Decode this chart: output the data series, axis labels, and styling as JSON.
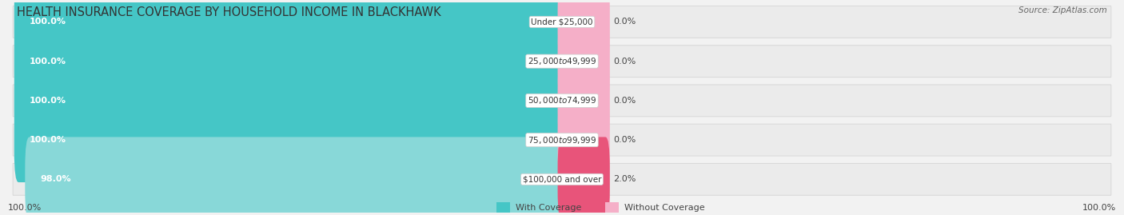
{
  "title": "HEALTH INSURANCE COVERAGE BY HOUSEHOLD INCOME IN BLACKHAWK",
  "source": "Source: ZipAtlas.com",
  "categories": [
    "Under $25,000",
    "$25,000 to $49,999",
    "$50,000 to $74,999",
    "$75,000 to $99,999",
    "$100,000 and over"
  ],
  "with_coverage": [
    100.0,
    100.0,
    100.0,
    100.0,
    98.0
  ],
  "without_coverage": [
    0.0,
    0.0,
    0.0,
    0.0,
    2.0
  ],
  "color_with": "#45c6c6",
  "color_with_light": "#88d8d8",
  "color_without_light": "#f5afc8",
  "color_without_dark": "#e8547a",
  "background_color": "#f2f2f2",
  "legend_with": "With Coverage",
  "legend_without": "Without Coverage",
  "x_left_label": "100.0%",
  "x_right_label": "100.0%",
  "title_fontsize": 10.5,
  "label_fontsize": 8,
  "tick_fontsize": 8,
  "bar_row_facecolor": "#ebebeb",
  "bar_row_edgecolor": "#d8d8d8"
}
